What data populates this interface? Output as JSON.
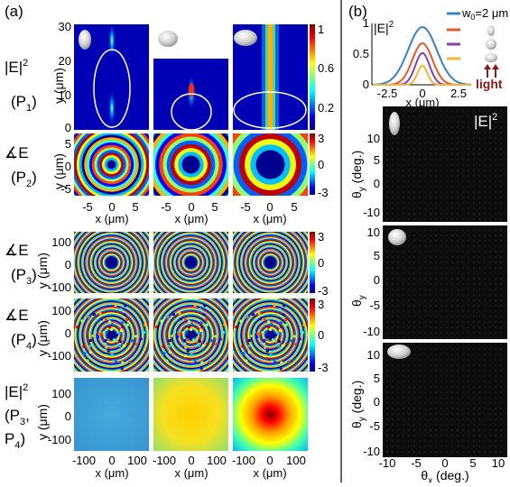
{
  "panel_a": {
    "label": "(a)",
    "rows": [
      {
        "name": "|E|",
        "sup": "2",
        "sub_prefix": "(P",
        "sub": "1",
        "sub_suffix": ")",
        "ylabel": "y (μm)",
        "yticks": [
          "30",
          "20",
          "10",
          "0"
        ]
      },
      {
        "name": "∡E",
        "sub_prefix": "(P",
        "sub": "2",
        "sub_suffix": ")",
        "ylabel": "y (μm)",
        "yticks": [
          "5",
          "0",
          "-5"
        ]
      },
      {
        "name": "∡E",
        "sub_prefix": "(P",
        "sub": "3",
        "sub_suffix": ")",
        "ylabel": "y (μm)",
        "yticks": [
          "100",
          "0",
          "-100"
        ]
      },
      {
        "name": "∡E",
        "sub_prefix": "(P",
        "sub": "4",
        "sub_suffix": ")",
        "ylabel": "y (μm)",
        "yticks": [
          "100",
          "0",
          "-100"
        ]
      },
      {
        "name": "|E|",
        "sup": "2",
        "line2": "(P",
        "sub_a": "3",
        "line2b": ",",
        "line3": "P",
        "sub_b": "4",
        "line3b": ")",
        "ylabel": "y (μm)",
        "yticks": [
          "100",
          "0",
          "-100"
        ]
      }
    ],
    "xticks_small": [
      "-5",
      "0",
      "5"
    ],
    "xticks_large": [
      "-100",
      "0",
      "100"
    ],
    "xlabel": "x (μm)",
    "colorbar_amp": [
      "1",
      "0.6",
      "0.2"
    ],
    "colorbar_phase": [
      "3",
      "0",
      "-3"
    ]
  },
  "panel_b": {
    "label": "(b)",
    "profile": {
      "ylabel": "|E|",
      "ylabel_sup": "2",
      "yticks": [
        "1",
        "0.5",
        "0"
      ],
      "xticks": [
        "-2.5",
        "0",
        "2.5"
      ],
      "xlabel": "x (μm)",
      "legend_first": "w",
      "legend_first_sub": "0",
      "legend_first_suffix": "=2 μm",
      "light_label": "light",
      "colors": [
        "#3c7fc2",
        "#e8572b",
        "#8a3fb0",
        "#f2b534"
      ]
    },
    "farfield_title": "|E|",
    "farfield_title_sup": "2",
    "ylabel": "θ",
    "ylabel_sub": "y",
    "ylabel_suffix": " (deg.)",
    "yticks": [
      "10",
      "5",
      "0",
      "-5",
      "-10"
    ],
    "yticks_short": [
      "10",
      "5",
      "0",
      "-5"
    ],
    "xlabel": "θ",
    "xlabel_sub": "x",
    "xlabel_suffix": " (deg.)",
    "xticks": [
      "-10",
      "-5",
      "0",
      "5",
      "10"
    ]
  }
}
